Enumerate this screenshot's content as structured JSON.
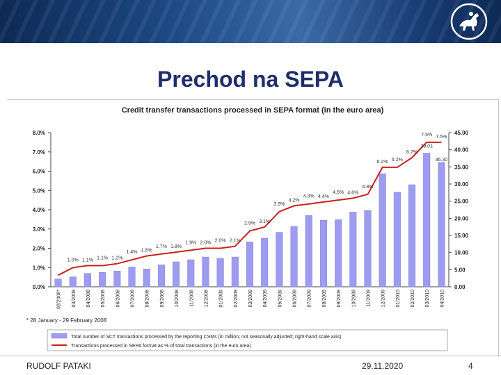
{
  "slide": {
    "title": "Prechod na SEPA",
    "author": "RUDOLF PATAKI",
    "date": "29.11.2020",
    "page": "4"
  },
  "colors": {
    "bars": "#9e9cf0",
    "line": "#cc1f1f",
    "title": "#1f2d6b"
  },
  "logo": {
    "icon": "horse-rider-emblem-icon"
  },
  "chart_data": {
    "type": "bar",
    "title": "Credit transfer transactions processed in SEPA format (in the euro area)",
    "categories": [
      "02/2008*",
      "03/2008",
      "04/2008",
      "05/2008",
      "06/2008",
      "07/2008",
      "08/2008",
      "09/2008",
      "10/2008",
      "11/2008",
      "12/2008",
      "01/2009",
      "02/2009",
      "03/2009",
      "04/2009",
      "05/2009",
      "06/2009",
      "07/2009",
      "08/2009",
      "09/2009",
      "10/2009",
      "11/2009",
      "12/2009",
      "01/2010",
      "02/2010",
      "03/2010",
      "04/2010"
    ],
    "tick_labels": [
      "02/2008*",
      "03/2008",
      "04/2008",
      "05/2008",
      "06/2008",
      "07/2008",
      "08/2008",
      "09/2008",
      "10/2008",
      "11/2008",
      "12/2008",
      "01/2009",
      "02/2009",
      "03/2009",
      "04/2009",
      "05/2009",
      "06/2009",
      "07/2009",
      "08/2009",
      "09/2009",
      "10/2009",
      "11/2009",
      "12/2009",
      "01/2010",
      "02/2010",
      "03/2010",
      "04/2010"
    ],
    "series": [
      {
        "name": "Total number of SCT transactions processed by the reporting CSMs (in million; not seasonally adjusted; right-hand scale axis)",
        "kind": "bar",
        "axis": "right",
        "values": [
          2.3,
          2.9,
          3.9,
          4.2,
          4.6,
          5.8,
          5.2,
          6.4,
          7.3,
          7.9,
          8.7,
          8.3,
          8.7,
          13.1,
          14.2,
          15.9,
          17.6,
          20.8,
          19.4,
          19.6,
          21.8,
          22.3,
          33.0,
          27.6,
          29.8,
          39.01,
          36.3
        ]
      },
      {
        "name": "Transactions processed in SEPA format as % of total transactions (in the euro area)",
        "kind": "line",
        "axis": "left",
        "values": [
          0.6,
          1.0,
          1.1,
          1.1,
          1.2,
          1.4,
          1.6,
          1.7,
          1.8,
          1.9,
          2.0,
          2.0,
          2.1,
          2.9,
          3.1,
          3.9,
          4.2,
          4.3,
          4.4,
          4.5,
          4.6,
          4.8,
          6.2,
          6.2,
          6.7,
          7.5,
          7.5
        ]
      }
    ],
    "y_left": {
      "min": 0,
      "max": 8,
      "ticks": [
        "0.0%",
        "1.0%",
        "2.0%",
        "3.0%",
        "4.0%",
        "5.0%",
        "6.0%",
        "7.0%",
        "8.0%"
      ]
    },
    "y_right": {
      "min": 0,
      "max": 45,
      "ticks": [
        "0.00",
        "5.00",
        "10.00",
        "15.00",
        "20.00",
        "25.00",
        "30.00",
        "35.00",
        "40.00",
        "45.00"
      ]
    },
    "line_labels": [
      "",
      "1.0%",
      "1.1%",
      "1.1%",
      "1.2%",
      "1.4%",
      "1.6%",
      "1.7%",
      "1.8%",
      "1.9%",
      "2.0%",
      "2.0%",
      "2.1%",
      "2.9%",
      "3.1%",
      "3.9%",
      "4.2%",
      "4.3%",
      "4.4%",
      "4.5%",
      "4.6%",
      "4.8%",
      "6.2%",
      "6.2%",
      "6.7%",
      "7.5%",
      "7.5%"
    ],
    "bar_labels": [
      "",
      "",
      "",
      "",
      "",
      "",
      "",
      "",
      "",
      "",
      "",
      "",
      "",
      "",
      "",
      "",
      "",
      "",
      "",
      "",
      "",
      "",
      "",
      "",
      "",
      "39.01",
      "36.30"
    ],
    "footnote": "* 28 January - 29 February 2008",
    "legend_position": "bottom",
    "grid": false
  }
}
